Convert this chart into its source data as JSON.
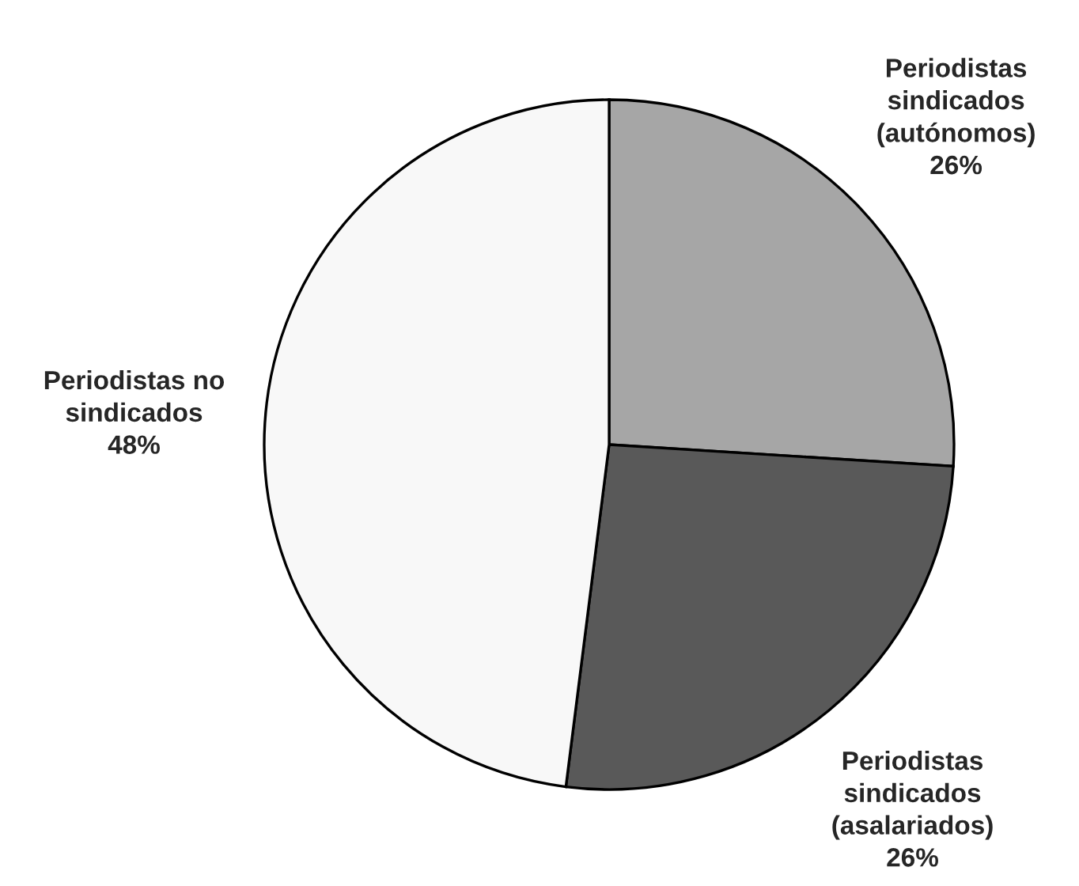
{
  "chart_data": {
    "type": "pie",
    "categories": [
      "Periodistas\nsindicados\n(autónomos)",
      "Periodistas\nsindicados\n(asalariados)",
      "Periodistas no\nsindicados"
    ],
    "values": [
      26,
      26,
      48
    ],
    "value_labels": [
      "26%",
      "26%",
      "48%"
    ],
    "colors": [
      "#a6a6a6",
      "#595959",
      "#f8f8f8"
    ]
  }
}
